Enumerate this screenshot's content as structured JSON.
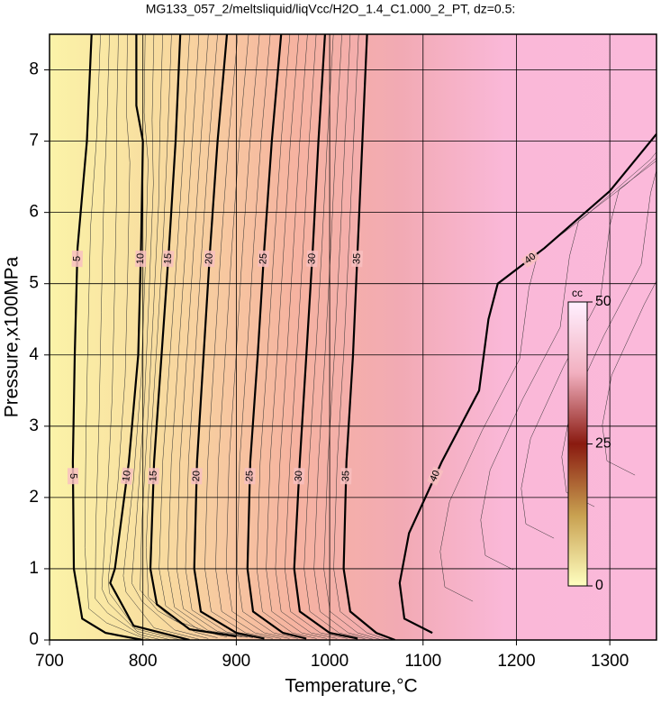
{
  "chart_data": {
    "type": "contour",
    "title": "MG133_057_2/meltsliquid/liqVcc/H2O_1.4_C1.000_2_PT, dz=0.5:",
    "xlabel": "Temperature,°C",
    "ylabel": "Pressure,x100MPa",
    "xlim": [
      700,
      1350
    ],
    "ylim": [
      0,
      8.5
    ],
    "xticks": [
      700,
      800,
      900,
      1000,
      1100,
      1200,
      1300
    ],
    "yticks": [
      0,
      1,
      2,
      3,
      4,
      5,
      6,
      7,
      8
    ],
    "grid": true,
    "contours": [
      {
        "level": 5,
        "x": [
          745,
          740,
          730,
          727,
          725,
          726,
          735,
          760,
          800
        ],
        "y": [
          8.5,
          7,
          5.5,
          4,
          2.5,
          1,
          0.3,
          0.1,
          0
        ]
      },
      {
        "level": 10,
        "x": [
          793,
          793,
          800,
          798,
          795,
          785,
          770,
          765,
          790,
          850
        ],
        "y": [
          8.5,
          7.5,
          7,
          5.5,
          4,
          2.5,
          1,
          0.8,
          0.2,
          0
        ]
      },
      {
        "level": 15,
        "x": [
          840,
          835,
          828,
          820,
          812,
          808,
          815,
          850,
          900
        ],
        "y": [
          8.5,
          7,
          5.5,
          4,
          2.5,
          1,
          0.5,
          0.15,
          0.05
        ]
      },
      {
        "level": 20,
        "x": [
          890,
          880,
          872,
          865,
          858,
          855,
          862,
          900,
          930
        ],
        "y": [
          8.5,
          7,
          5.5,
          4,
          2.5,
          1,
          0.4,
          0.1,
          0.02
        ]
      },
      {
        "level": 25,
        "x": [
          948,
          938,
          930,
          923,
          915,
          912,
          918,
          950,
          975
        ],
        "y": [
          8.5,
          7,
          5.5,
          4,
          2.5,
          1,
          0.4,
          0.1,
          0.02
        ]
      },
      {
        "level": 30,
        "x": [
          995,
          988,
          982,
          975,
          968,
          962,
          968,
          1000,
          1030
        ],
        "y": [
          8.5,
          7,
          5.5,
          4,
          2.5,
          1,
          0.4,
          0.1,
          0.02
        ]
      },
      {
        "level": 35,
        "x": [
          1040,
          1035,
          1030,
          1025,
          1018,
          1015,
          1022,
          1050,
          1070
        ],
        "y": [
          8.5,
          7,
          5.5,
          4,
          2.5,
          1,
          0.4,
          0.1,
          0
        ]
      },
      {
        "level": 40,
        "x": [
          1350,
          1300,
          1230,
          1180,
          1170,
          1160,
          1120,
          1085,
          1075,
          1080,
          1110
        ],
        "y": [
          7.1,
          6.3,
          5.5,
          5,
          4.5,
          3.5,
          2.5,
          1.5,
          0.8,
          0.3,
          0.1
        ]
      }
    ],
    "colorbar": {
      "label": "cc",
      "lim": [
        0,
        50
      ],
      "ticks": [
        0,
        25,
        50
      ]
    }
  }
}
